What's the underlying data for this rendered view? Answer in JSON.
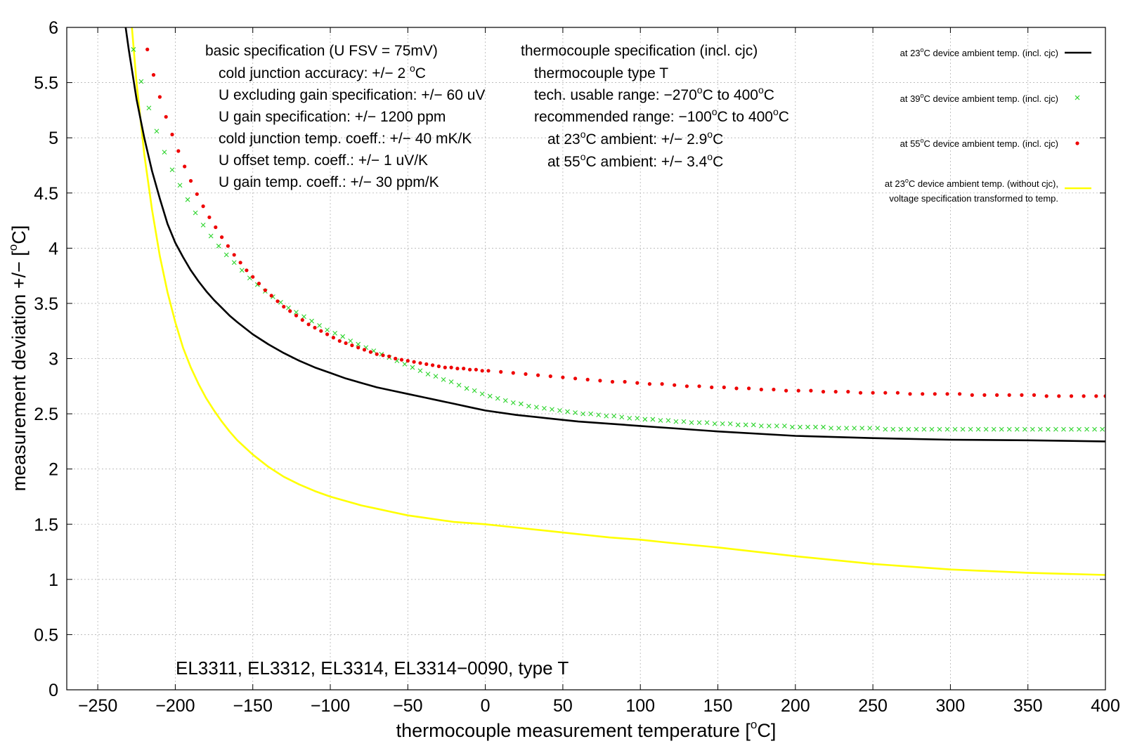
{
  "chart_data": {
    "type": "line",
    "xlabel": "thermocouple measurement temperature [°C]",
    "ylabel": "measurement deviation +/− [°C]",
    "xlim": [
      -270,
      400
    ],
    "ylim": [
      0,
      6
    ],
    "xticks": [
      -250,
      -200,
      -150,
      -100,
      -50,
      0,
      50,
      100,
      150,
      200,
      250,
      300,
      350,
      400
    ],
    "yticks": [
      0,
      0.5,
      1,
      1.5,
      2,
      2.5,
      3,
      3.5,
      4,
      4.5,
      5,
      5.5,
      6
    ],
    "grid": true,
    "legend_position": "top-right",
    "series": [
      {
        "name": "at 23°C device ambient temp. (incl. cjc)",
        "style": "line",
        "color": "#000000",
        "x": [
          -232,
          -230,
          -225,
          -220,
          -215,
          -210,
          -205,
          -200,
          -195,
          -190,
          -185,
          -180,
          -175,
          -170,
          -165,
          -160,
          -150,
          -140,
          -130,
          -120,
          -110,
          -100,
          -90,
          -80,
          -70,
          -60,
          -50,
          -40,
          -30,
          -20,
          -10,
          0,
          20,
          40,
          60,
          80,
          100,
          120,
          150,
          200,
          250,
          300,
          350,
          400
        ],
        "y": [
          6.0,
          5.8,
          5.35,
          5.0,
          4.7,
          4.45,
          4.22,
          4.05,
          3.92,
          3.8,
          3.7,
          3.61,
          3.53,
          3.46,
          3.39,
          3.33,
          3.22,
          3.13,
          3.05,
          2.98,
          2.92,
          2.87,
          2.82,
          2.78,
          2.74,
          2.71,
          2.68,
          2.65,
          2.62,
          2.59,
          2.56,
          2.53,
          2.49,
          2.46,
          2.43,
          2.41,
          2.39,
          2.37,
          2.34,
          2.3,
          2.28,
          2.265,
          2.26,
          2.25
        ]
      },
      {
        "name": "at 39°C device ambient temp. (incl. cjc)",
        "style": "x-markers",
        "color": "#2bd42b",
        "x": [
          -227,
          -222,
          -217,
          -212,
          -207,
          -202,
          -197,
          -192,
          -187,
          -182,
          -177,
          -172,
          -167,
          -162,
          -157,
          -152,
          -147,
          -142,
          -137,
          -132,
          -127,
          -122,
          -117,
          -112,
          -107,
          -102,
          -97,
          -92,
          -87,
          -82,
          -77,
          -72,
          -67,
          -62,
          -57,
          -52,
          -47,
          -42,
          -37,
          -32,
          -27,
          -22,
          -17,
          -12,
          -7,
          -2,
          3,
          8,
          13,
          18,
          23,
          28,
          33,
          38,
          43,
          48,
          53,
          58,
          63,
          68,
          73,
          78,
          83,
          88,
          93,
          98,
          103,
          108,
          113,
          118,
          123,
          128,
          133,
          138,
          143,
          148,
          153,
          158,
          163,
          168,
          173,
          178,
          183,
          188,
          193,
          198,
          203,
          208,
          213,
          218,
          223,
          228,
          233,
          238,
          243,
          248,
          253,
          258,
          263,
          268,
          273,
          278,
          283,
          288,
          293,
          298,
          303,
          308,
          313,
          318,
          323,
          328,
          333,
          338,
          343,
          348,
          353,
          358,
          363,
          368,
          373,
          378,
          383,
          388,
          393,
          398
        ],
        "y": [
          5.8,
          5.51,
          5.27,
          5.06,
          4.87,
          4.71,
          4.57,
          4.44,
          4.32,
          4.21,
          4.11,
          4.02,
          3.94,
          3.87,
          3.8,
          3.73,
          3.67,
          3.61,
          3.56,
          3.51,
          3.46,
          3.42,
          3.38,
          3.34,
          3.3,
          3.26,
          3.23,
          3.2,
          3.16,
          3.13,
          3.1,
          3.07,
          3.04,
          3.01,
          2.98,
          2.95,
          2.92,
          2.89,
          2.86,
          2.84,
          2.81,
          2.79,
          2.76,
          2.73,
          2.71,
          2.68,
          2.66,
          2.64,
          2.62,
          2.6,
          2.59,
          2.57,
          2.56,
          2.55,
          2.54,
          2.53,
          2.52,
          2.51,
          2.5,
          2.5,
          2.49,
          2.48,
          2.48,
          2.47,
          2.46,
          2.46,
          2.45,
          2.45,
          2.44,
          2.44,
          2.43,
          2.43,
          2.42,
          2.42,
          2.42,
          2.41,
          2.41,
          2.41,
          2.4,
          2.4,
          2.4,
          2.39,
          2.39,
          2.39,
          2.39,
          2.38,
          2.38,
          2.38,
          2.38,
          2.38,
          2.37,
          2.37,
          2.37,
          2.37,
          2.37,
          2.37,
          2.37,
          2.36,
          2.36,
          2.36,
          2.36,
          2.36,
          2.36,
          2.36,
          2.36,
          2.36,
          2.36,
          2.36,
          2.36,
          2.36,
          2.36,
          2.36,
          2.36,
          2.36,
          2.36,
          2.36,
          2.36,
          2.36,
          2.36,
          2.36,
          2.36,
          2.36,
          2.36,
          2.36,
          2.36,
          2.36
        ]
      },
      {
        "name": "at 55°C device ambient temp. (incl. cjc)",
        "style": "dot-markers",
        "color": "#ee0000",
        "x": [
          -218,
          -214,
          -210,
          -206,
          -202,
          -198,
          -194,
          -190,
          -186,
          -182,
          -178,
          -174,
          -170,
          -166,
          -162,
          -158,
          -154,
          -150,
          -146,
          -142,
          -138,
          -134,
          -130,
          -126,
          -122,
          -118,
          -114,
          -110,
          -106,
          -102,
          -98,
          -94,
          -90,
          -86,
          -82,
          -78,
          -74,
          -70,
          -66,
          -62,
          -58,
          -54,
          -50,
          -46,
          -42,
          -38,
          -34,
          -30,
          -26,
          -22,
          -18,
          -14,
          -10,
          -6,
          -2,
          2,
          10,
          18,
          26,
          34,
          42,
          50,
          58,
          66,
          74,
          82,
          90,
          98,
          106,
          114,
          122,
          130,
          138,
          146,
          154,
          162,
          170,
          178,
          186,
          194,
          202,
          210,
          218,
          226,
          234,
          242,
          250,
          258,
          266,
          274,
          282,
          290,
          298,
          306,
          314,
          322,
          330,
          338,
          346,
          354,
          362,
          370,
          378,
          386,
          394,
          400
        ],
        "y": [
          5.8,
          5.57,
          5.37,
          5.19,
          5.03,
          4.88,
          4.74,
          4.61,
          4.49,
          4.38,
          4.28,
          4.19,
          4.1,
          4.02,
          3.94,
          3.87,
          3.8,
          3.74,
          3.68,
          3.62,
          3.57,
          3.52,
          3.47,
          3.43,
          3.39,
          3.35,
          3.31,
          3.28,
          3.25,
          3.22,
          3.19,
          3.16,
          3.14,
          3.12,
          3.1,
          3.08,
          3.06,
          3.04,
          3.03,
          3.02,
          3.0,
          2.99,
          2.98,
          2.97,
          2.96,
          2.95,
          2.94,
          2.93,
          2.92,
          2.92,
          2.91,
          2.91,
          2.9,
          2.9,
          2.89,
          2.89,
          2.88,
          2.87,
          2.86,
          2.85,
          2.84,
          2.83,
          2.82,
          2.81,
          2.8,
          2.79,
          2.79,
          2.78,
          2.77,
          2.77,
          2.76,
          2.75,
          2.75,
          2.74,
          2.74,
          2.73,
          2.73,
          2.72,
          2.72,
          2.71,
          2.71,
          2.71,
          2.7,
          2.7,
          2.7,
          2.69,
          2.69,
          2.69,
          2.69,
          2.68,
          2.68,
          2.68,
          2.68,
          2.68,
          2.67,
          2.67,
          2.67,
          2.67,
          2.67,
          2.67,
          2.66,
          2.66,
          2.66,
          2.66,
          2.66,
          2.66
        ]
      },
      {
        "name": "at 23°C device ambient temp. (without cjc), voltage specification transformed to temp.",
        "style": "line",
        "color": "#ffff00",
        "x": [
          -228,
          -225,
          -220,
          -215,
          -210,
          -205,
          -200,
          -195,
          -190,
          -185,
          -180,
          -175,
          -170,
          -165,
          -160,
          -150,
          -140,
          -130,
          -120,
          -110,
          -100,
          -90,
          -80,
          -70,
          -60,
          -50,
          -40,
          -30,
          -20,
          -10,
          0,
          20,
          40,
          60,
          80,
          100,
          120,
          150,
          200,
          250,
          300,
          350,
          400
        ],
        "y": [
          6.0,
          5.5,
          4.85,
          4.35,
          3.93,
          3.6,
          3.33,
          3.1,
          2.92,
          2.77,
          2.64,
          2.53,
          2.43,
          2.34,
          2.26,
          2.13,
          2.02,
          1.93,
          1.86,
          1.8,
          1.75,
          1.71,
          1.67,
          1.64,
          1.61,
          1.58,
          1.56,
          1.54,
          1.52,
          1.51,
          1.5,
          1.47,
          1.44,
          1.41,
          1.38,
          1.36,
          1.33,
          1.29,
          1.21,
          1.14,
          1.09,
          1.06,
          1.04
        ]
      }
    ]
  },
  "legend": {
    "item1": {
      "pre": "at 23",
      "sup": "o",
      "post": "C device ambient temp. (incl. cjc)"
    },
    "item2": {
      "pre": "at 39",
      "sup": "o",
      "post": "C device ambient temp. (incl. cjc)"
    },
    "item3": {
      "pre": "at 55",
      "sup": "o",
      "post": "C device ambient temp. (incl. cjc)"
    },
    "item4": {
      "pre": "at 23",
      "sup": "o",
      "post": "C device ambient temp. (without cjc),",
      "line2": "voltage specification transformed to temp."
    }
  },
  "labels": {
    "x_pre": "thermocouple measurement temperature [",
    "x_sup": "o",
    "x_post": "C]",
    "y_pre": "measurement deviation +/− [",
    "y_sup": "o",
    "y_post": "C]"
  },
  "basic_spec": {
    "title": "basic specification (U FSV = 75mV)",
    "cj_pre": "cold junction accuracy: +/− 2 ",
    "cj_sup": "o",
    "cj_post": "C",
    "line2": "U excluding gain specification: +/− 60 uV",
    "line3": "U gain specification: +/− 1200 ppm",
    "line4": "cold junction temp. coeff.: +/− 40 mK/K",
    "line5": "U offset temp. coeff.: +/− 1 uV/K",
    "line6": "U gain temp. coeff.: +/− 30 ppm/K"
  },
  "tc_spec": {
    "title": "thermocouple specification (incl. cjc)",
    "type": "thermocouple type T",
    "tech_pre": "tech. usable range: −270",
    "tech_sup1": "o",
    "tech_mid": "C to 400",
    "tech_sup2": "o",
    "tech_post": "C",
    "rec_pre": "recommended range: −100",
    "rec_sup1": "o",
    "rec_mid": "C to 400",
    "rec_sup2": "o",
    "rec_post": "C",
    "amb23_pre": "at 23",
    "amb23_sup1": "o",
    "amb23_mid": "C ambient: +/− 2.9",
    "amb23_sup2": "o",
    "amb23_post": "C",
    "amb55_pre": "at 55",
    "amb55_sup1": "o",
    "amb55_mid": "C ambient: +/− 3.4",
    "amb55_sup2": "o",
    "amb55_post": "C"
  },
  "footer": {
    "products": "EL3311, EL3312, EL3314, EL3314−0090, type T"
  }
}
